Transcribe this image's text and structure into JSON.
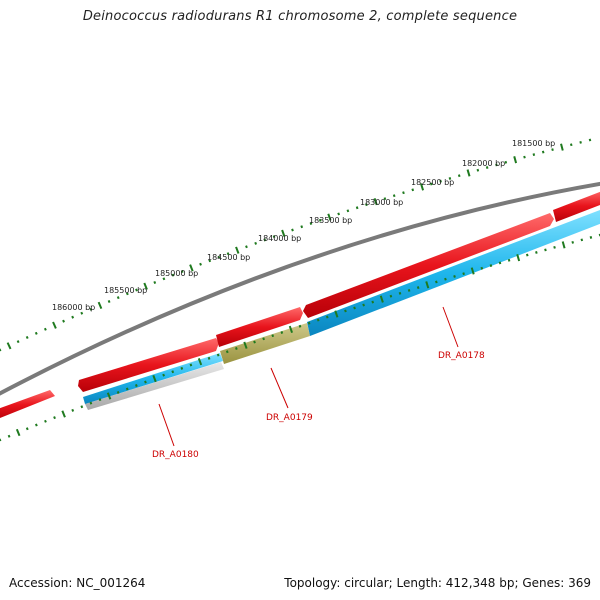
{
  "title": "Deinococcus radiodurans R1 chromosome 2, complete sequence",
  "accession_text": "Accession: NC_001264",
  "summary_text": "Topology: circular; Length: 412,348 bp; Genes: 369",
  "colors": {
    "backbone": "#7a7a7a",
    "forward_cds": "#e8141c",
    "reverse_cds": "#1fb6ec",
    "hypothetical_cds": "#a9a24a",
    "other_feature": "#c8c8c8",
    "scale_ticks": "#1f7a1f",
    "gene_label": "#cc0000"
  },
  "scale": {
    "unit": "bp",
    "labels": [
      "186000 bp",
      "185500 bp",
      "185000 bp",
      "184500 bp",
      "184000 bp",
      "183500 bp",
      "183000 bp",
      "182500 bp",
      "182000 bp",
      "181500 bp"
    ]
  },
  "gene_labels": [
    "DR_A0178",
    "DR_A0179",
    "DR_A0180"
  ]
}
